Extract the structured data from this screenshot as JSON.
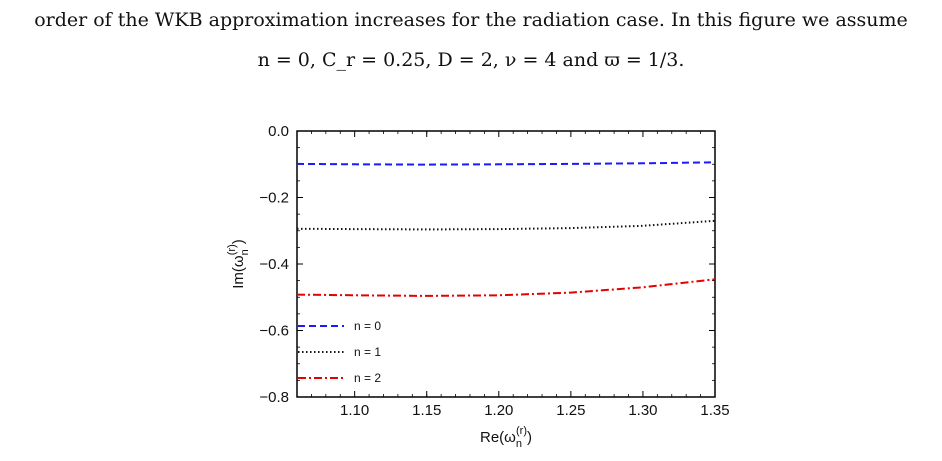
{
  "caption": {
    "line1": "order of the WKB approximation increases for the radiation case. In this figure we assume",
    "line2": "n = 0, C_r = 0.25, D = 2, ν = 4 and ϖ = 1/3."
  },
  "chart_data": {
    "type": "line",
    "xlabel": "Re(ω_n^(r))",
    "ylabel": "Im(ω_n^(r))",
    "xlim": [
      1.06,
      1.35
    ],
    "ylim": [
      -0.8,
      0.0
    ],
    "xticks": [
      "1.10",
      "1.15",
      "1.20",
      "1.25",
      "1.30",
      "1.35"
    ],
    "yticks": [
      "0.0",
      "−0.2",
      "−0.4",
      "−0.6",
      "−0.8"
    ],
    "legend_position": "bottom-left",
    "series": [
      {
        "name": "n = 0",
        "color": "#1a1aff",
        "dash": "dashed",
        "x": [
          1.06,
          1.1,
          1.15,
          1.2,
          1.25,
          1.3,
          1.35
        ],
        "y": [
          -0.099,
          -0.1,
          -0.101,
          -0.1,
          -0.099,
          -0.097,
          -0.094
        ]
      },
      {
        "name": "n = 1",
        "color": "#111111",
        "dash": "dotted",
        "x": [
          1.06,
          1.1,
          1.15,
          1.2,
          1.25,
          1.3,
          1.35
        ],
        "y": [
          -0.294,
          -0.295,
          -0.296,
          -0.295,
          -0.292,
          -0.285,
          -0.27
        ]
      },
      {
        "name": "n = 2",
        "color": "#e60000",
        "dash": "dashdot",
        "x": [
          1.06,
          1.1,
          1.15,
          1.2,
          1.25,
          1.3,
          1.35
        ],
        "y": [
          -0.492,
          -0.494,
          -0.496,
          -0.494,
          -0.486,
          -0.47,
          -0.446
        ]
      }
    ]
  }
}
